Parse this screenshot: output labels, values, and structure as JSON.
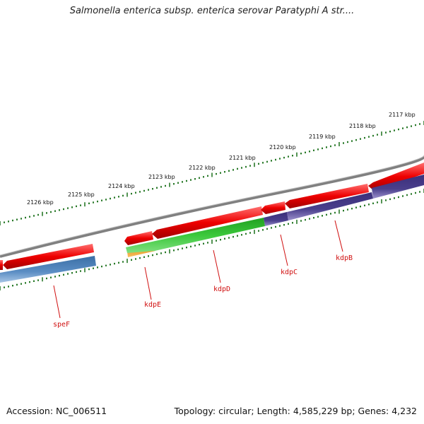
{
  "title": "Salmonella enterica subsp. enterica serovar Paratyphi A str....",
  "footer": {
    "accession": "Accession: NC_006511",
    "summary": "Topology: circular; Length: 4,585,229 bp; Genes: 4,232"
  },
  "ticks": [
    {
      "kbp": 2117,
      "label": "2117 kbp"
    },
    {
      "kbp": 2118,
      "label": "2118 kbp"
    },
    {
      "kbp": 2119,
      "label": "2119 kbp"
    },
    {
      "kbp": 2120,
      "label": "2120 kbp"
    },
    {
      "kbp": 2121,
      "label": "2121 kbp"
    },
    {
      "kbp": 2122,
      "label": "2122 kbp"
    },
    {
      "kbp": 2123,
      "label": "2123 kbp"
    },
    {
      "kbp": 2124,
      "label": "2124 kbp"
    },
    {
      "kbp": 2125,
      "label": "2125 kbp"
    },
    {
      "kbp": 2126,
      "label": "2126 kbp"
    }
  ],
  "genes": [
    {
      "name": "speF",
      "color": "#4f81bd"
    },
    {
      "name": "kdpE",
      "color": "#f0a020"
    },
    {
      "name": "kdpD",
      "color": "#3cc83c"
    },
    {
      "name": "kdpC",
      "color": "#4a3f8c"
    },
    {
      "name": "kdpB",
      "color": "#4a3f8c"
    }
  ],
  "colors": {
    "backbone": "#808080",
    "cds": "#ee0000",
    "ticks": "#2a7a2a",
    "label": "#d01010"
  }
}
